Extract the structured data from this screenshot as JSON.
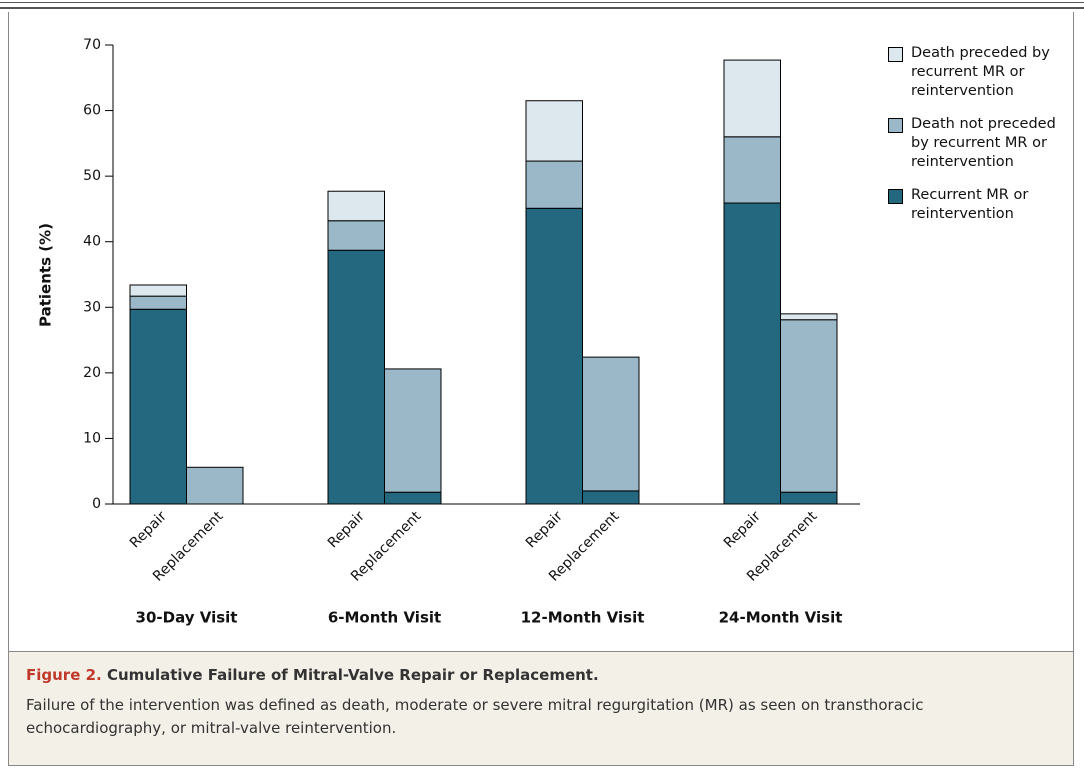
{
  "chart_data": {
    "type": "stacked_bar",
    "y_label": "Patients (%)",
    "categories": [
      "Repair",
      "Replacement",
      "Repair",
      "Replacement",
      "Repair",
      "Replacement",
      "Repair",
      "Replacement"
    ],
    "groups": [
      "30-Day Visit",
      "6-Month Visit",
      "12-Month Visit",
      "24-Month Visit"
    ],
    "series": [
      {
        "name": "Recurrent MR or reintervention",
        "color": "#23687f",
        "values": [
          29.7,
          0,
          38.7,
          1.8,
          45.1,
          2.0,
          45.9,
          1.8
        ]
      },
      {
        "name": "Death not preceded by recurrent MR or reintervention",
        "color": "#9bb8c8",
        "values": [
          2.0,
          5.6,
          4.5,
          18.8,
          7.2,
          20.4,
          10.1,
          26.3
        ]
      },
      {
        "name": "Death preceded by recurrent MR or reintervention",
        "color": "#dde8ee",
        "values": [
          1.7,
          0,
          4.5,
          0,
          9.2,
          0,
          11.7,
          0.9
        ]
      }
    ],
    "ylim": [
      0,
      70
    ],
    "yticks": [
      0,
      10,
      20,
      30,
      40,
      50,
      60,
      70
    ]
  },
  "caption": {
    "label": "Figure 2.",
    "title": "Cumulative Failure of Mitral-Valve Repair or Replacement.",
    "text": "Failure of the intervention was defined as death, moderate or severe mitral regurgitation (MR) as seen on transthoracic echocardiography, or mitral-valve reintervention."
  }
}
